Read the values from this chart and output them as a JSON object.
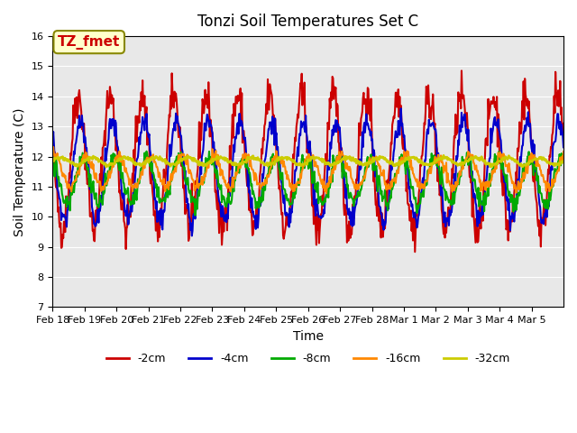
{
  "title": "Tonzi Soil Temperatures Set C",
  "xlabel": "Time",
  "ylabel": "Soil Temperature (C)",
  "ylim": [
    7.0,
    16.0
  ],
  "yticks": [
    7.0,
    8.0,
    9.0,
    10.0,
    11.0,
    12.0,
    13.0,
    14.0,
    15.0,
    16.0
  ],
  "annotation_text": "TZ_fmet",
  "bg_color": "#e8e8e8",
  "lines": [
    {
      "label": "-2cm",
      "color": "#cc0000",
      "lw": 1.5
    },
    {
      "label": "-4cm",
      "color": "#0000cc",
      "lw": 1.5
    },
    {
      "label": "-8cm",
      "color": "#00aa00",
      "lw": 1.5
    },
    {
      "label": "-16cm",
      "color": "#ff8800",
      "lw": 1.5
    },
    {
      "label": "-32cm",
      "color": "#cccc00",
      "lw": 2.0
    }
  ],
  "xtick_labels": [
    "Feb 18",
    "Feb 19",
    "Feb 20",
    "Feb 21",
    "Feb 22",
    "Feb 23",
    "Feb 24",
    "Feb 25",
    "Feb 26",
    "Feb 27",
    "Feb 28",
    "Mar 1",
    "Mar 2",
    "Mar 3",
    "Mar 4",
    "Mar 5"
  ],
  "n_days": 16,
  "pts_per_day": 48
}
